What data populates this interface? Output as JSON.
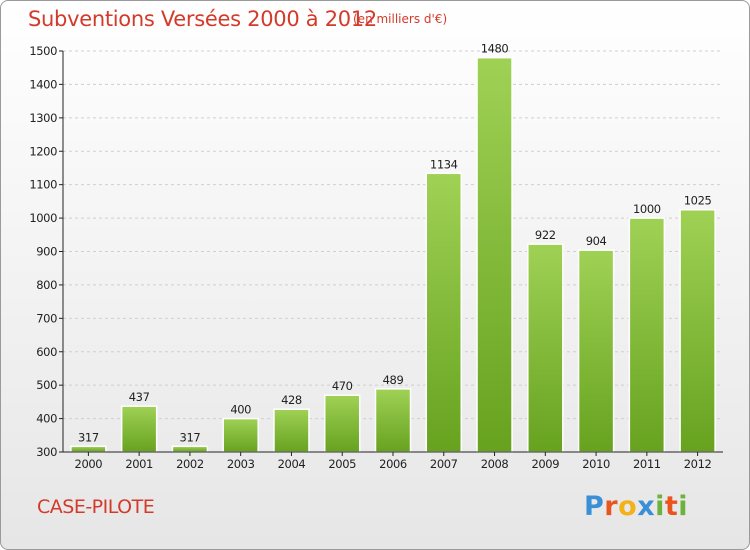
{
  "header": {
    "title": "Subventions Versées 2000 à 2012",
    "subtitle": "(en milliers d'€)"
  },
  "footer": {
    "commune": "CASE-PILOTE",
    "logo_letters": [
      {
        "char": "P",
        "color": "#3b8fd6"
      },
      {
        "char": "r",
        "color": "#e8551f"
      },
      {
        "char": "o",
        "color": "#f2b21a"
      },
      {
        "char": "x",
        "color": "#3b8fd6"
      },
      {
        "char": "i",
        "color": "#6bb33a"
      },
      {
        "char": "t",
        "color": "#e8551f"
      },
      {
        "char": "i",
        "color": "#6bb33a"
      }
    ]
  },
  "colors": {
    "bar_top": "#9fd155",
    "bar_bottom": "#67a21f",
    "axis": "#222222",
    "grid": "#cfcfcf"
  },
  "chart_data": {
    "type": "bar",
    "title": "Subventions Versées 2000 à 2012",
    "subtitle": "(en milliers d'€)",
    "xlabel": "",
    "ylabel": "",
    "categories": [
      "2000",
      "2001",
      "2002",
      "2003",
      "2004",
      "2005",
      "2006",
      "2007",
      "2008",
      "2009",
      "2010",
      "2011",
      "2012"
    ],
    "values": [
      317,
      437,
      317,
      400,
      428,
      470,
      489,
      1134,
      1480,
      922,
      904,
      1000,
      1025
    ],
    "data_labels": [
      "317",
      "437",
      "317",
      "400",
      "428",
      "470",
      "489",
      "1134",
      "1480",
      "922",
      "904",
      "1000",
      "1025"
    ],
    "ylim": [
      300,
      1500
    ],
    "yticks": [
      300,
      400,
      500,
      600,
      700,
      800,
      900,
      1000,
      1100,
      1200,
      1300,
      1400,
      1500
    ],
    "ytick_labels": [
      "300",
      "400",
      "500",
      "600",
      "700",
      "800",
      "900",
      "1000",
      "1100",
      "1200",
      "1300",
      "1400",
      "1500"
    ],
    "grid": true,
    "legend": "none"
  }
}
